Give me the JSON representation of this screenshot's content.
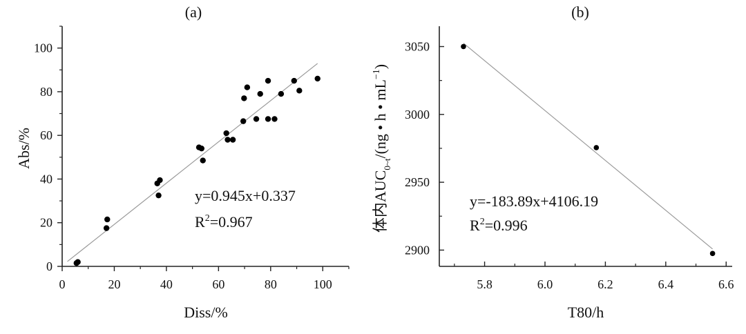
{
  "chart_data": [
    {
      "type": "scatter",
      "title": "(a)",
      "xlabel": "Diss/%",
      "ylabel": "Abs/%",
      "xlim": [
        0,
        110
      ],
      "ylim": [
        0,
        110
      ],
      "xticks": [
        0,
        20,
        40,
        60,
        80,
        100
      ],
      "yticks": [
        0,
        20,
        40,
        60,
        80,
        100
      ],
      "xtick_labels": [
        "0",
        "20",
        "40",
        "60",
        "80",
        "100"
      ],
      "ytick_labels": [
        "0",
        "20",
        "40",
        "60",
        "80",
        "100"
      ],
      "grid": false,
      "series": [
        {
          "points": [
            [
              5.5,
              1.5
            ],
            [
              6,
              2
            ],
            [
              17,
              17.5
            ],
            [
              17.3,
              21.5
            ],
            [
              36.5,
              38
            ],
            [
              37.5,
              39.5
            ],
            [
              37,
              32.5
            ],
            [
              52.5,
              54.5
            ],
            [
              53.5,
              54
            ],
            [
              54,
              48.5
            ],
            [
              63,
              61
            ],
            [
              63.5,
              58
            ],
            [
              65.5,
              58
            ],
            [
              69.5,
              66.5
            ],
            [
              69.8,
              77
            ],
            [
              71,
              82
            ],
            [
              74.5,
              67.5
            ],
            [
              76,
              79
            ],
            [
              79,
              67.5
            ],
            [
              79,
              85
            ],
            [
              81.5,
              67.5
            ],
            [
              84,
              79
            ],
            [
              89,
              85
            ],
            [
              91,
              80.5
            ],
            [
              98,
              86
            ]
          ]
        }
      ],
      "fit_line": {
        "x": [
          2,
          98
        ],
        "y": [
          2.227,
          92.947
        ]
      },
      "equation": "y=0.945x+0.337",
      "r2_prefix": "R",
      "r2_sup": "2",
      "r2_value": "=0.967"
    },
    {
      "type": "scatter",
      "title": "(b)",
      "xlabel": "T80/h",
      "ylabel_main": "体内AUC",
      "ylabel_sub": "0~t",
      "ylabel_unit_pre": "/(ng • h • mL",
      "ylabel_unit_sup": "−1",
      "ylabel_unit_post": ")",
      "xlim": [
        5.65,
        6.62
      ],
      "ylim": [
        2888,
        3065
      ],
      "xticks": [
        5.8,
        6.0,
        6.2,
        6.4,
        6.6
      ],
      "yticks": [
        2900,
        2950,
        3000,
        3050
      ],
      "xtick_labels": [
        "5.8",
        "6.0",
        "6.2",
        "6.4",
        "6.6"
      ],
      "ytick_labels": [
        "2900",
        "2950",
        "3000",
        "3050"
      ],
      "grid": false,
      "series": [
        {
          "points": [
            [
              5.73,
              3050
            ],
            [
              6.17,
              2975.5
            ],
            [
              6.555,
              2897.5
            ]
          ]
        }
      ],
      "fit_line": {
        "x": [
          5.73,
          6.555
        ],
        "y": [
          3052.5,
          2900.8
        ]
      },
      "equation": "y=-183.89x+4106.19",
      "r2_prefix": "R",
      "r2_sup": "2",
      "r2_value": "=0.996"
    }
  ]
}
